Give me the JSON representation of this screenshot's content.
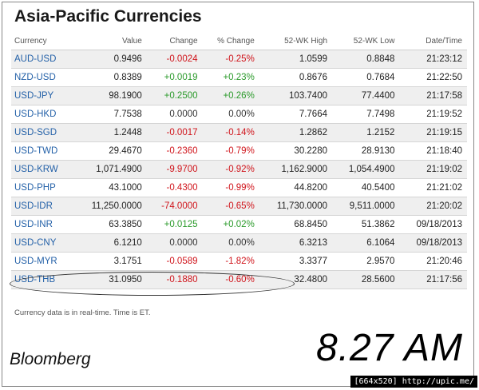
{
  "title": "Asia-Pacific Currencies",
  "columns": [
    "Currency",
    "Value",
    "Change",
    "% Change",
    "52-WK High",
    "52-WK Low",
    "Date/Time"
  ],
  "rows": [
    {
      "symbol": "AUD-USD",
      "value": "0.9496",
      "change": "-0.0024",
      "pct": "-0.25%",
      "high": "1.0599",
      "low": "0.8848",
      "time": "21:23:12",
      "dir": "neg"
    },
    {
      "symbol": "NZD-USD",
      "value": "0.8389",
      "change": "+0.0019",
      "pct": "+0.23%",
      "high": "0.8676",
      "low": "0.7684",
      "time": "21:22:50",
      "dir": "pos"
    },
    {
      "symbol": "USD-JPY",
      "value": "98.1900",
      "change": "+0.2500",
      "pct": "+0.26%",
      "high": "103.7400",
      "low": "77.4400",
      "time": "21:17:58",
      "dir": "pos"
    },
    {
      "symbol": "USD-HKD",
      "value": "7.7538",
      "change": "0.0000",
      "pct": "0.00%",
      "high": "7.7664",
      "low": "7.7498",
      "time": "21:19:52",
      "dir": "zero"
    },
    {
      "symbol": "USD-SGD",
      "value": "1.2448",
      "change": "-0.0017",
      "pct": "-0.14%",
      "high": "1.2862",
      "low": "1.2152",
      "time": "21:19:15",
      "dir": "neg"
    },
    {
      "symbol": "USD-TWD",
      "value": "29.4670",
      "change": "-0.2360",
      "pct": "-0.79%",
      "high": "30.2280",
      "low": "28.9130",
      "time": "21:18:40",
      "dir": "neg"
    },
    {
      "symbol": "USD-KRW",
      "value": "1,071.4900",
      "change": "-9.9700",
      "pct": "-0.92%",
      "high": "1,162.9000",
      "low": "1,054.4900",
      "time": "21:19:02",
      "dir": "neg"
    },
    {
      "symbol": "USD-PHP",
      "value": "43.1000",
      "change": "-0.4300",
      "pct": "-0.99%",
      "high": "44.8200",
      "low": "40.5400",
      "time": "21:21:02",
      "dir": "neg"
    },
    {
      "symbol": "USD-IDR",
      "value": "11,250.0000",
      "change": "-74.0000",
      "pct": "-0.65%",
      "high": "11,730.0000",
      "low": "9,511.0000",
      "time": "21:20:02",
      "dir": "neg"
    },
    {
      "symbol": "USD-INR",
      "value": "63.3850",
      "change": "+0.0125",
      "pct": "+0.02%",
      "high": "68.8450",
      "low": "51.3862",
      "time": "09/18/2013",
      "dir": "pos"
    },
    {
      "symbol": "USD-CNY",
      "value": "6.1210",
      "change": "0.0000",
      "pct": "0.00%",
      "high": "6.3213",
      "low": "6.1064",
      "time": "09/18/2013",
      "dir": "zero"
    },
    {
      "symbol": "USD-MYR",
      "value": "3.1751",
      "change": "-0.0589",
      "pct": "-1.82%",
      "high": "3.3377",
      "low": "2.9570",
      "time": "21:20:46",
      "dir": "neg"
    },
    {
      "symbol": "USD-THB",
      "value": "31.0950",
      "change": "-0.1880",
      "pct": "-0.60%",
      "high": "32.4800",
      "low": "28.5600",
      "time": "21:17:56",
      "dir": "neg"
    }
  ],
  "footnote": "Currency data is in real-time. Time is ET.",
  "brand": "Bloomberg",
  "clock": "8.27 AM",
  "stamp": "[664x520] http://upic.me/",
  "colors": {
    "negative": "#d0141b",
    "positive": "#2a9a2a",
    "link": "#2461a8"
  }
}
